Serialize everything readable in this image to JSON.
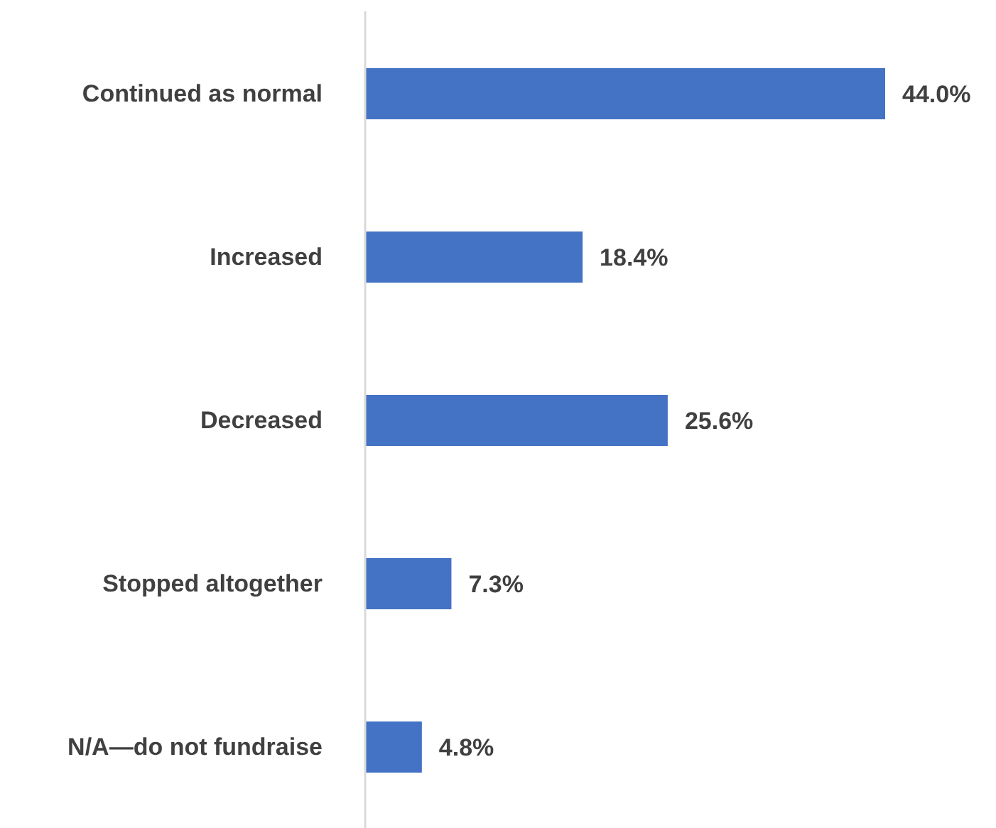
{
  "chart_data": {
    "type": "bar",
    "orientation": "horizontal",
    "categories": [
      "Continued as normal",
      "Increased",
      "Decreased",
      "Stopped altogether",
      "N/A—do not fundraise"
    ],
    "values": [
      44.0,
      18.4,
      25.6,
      7.3,
      4.8
    ],
    "value_labels": [
      "44.0%",
      "18.4%",
      "25.6%",
      "7.3%",
      "4.8%"
    ],
    "color": "#4472c4",
    "grid": false,
    "legend": false
  }
}
